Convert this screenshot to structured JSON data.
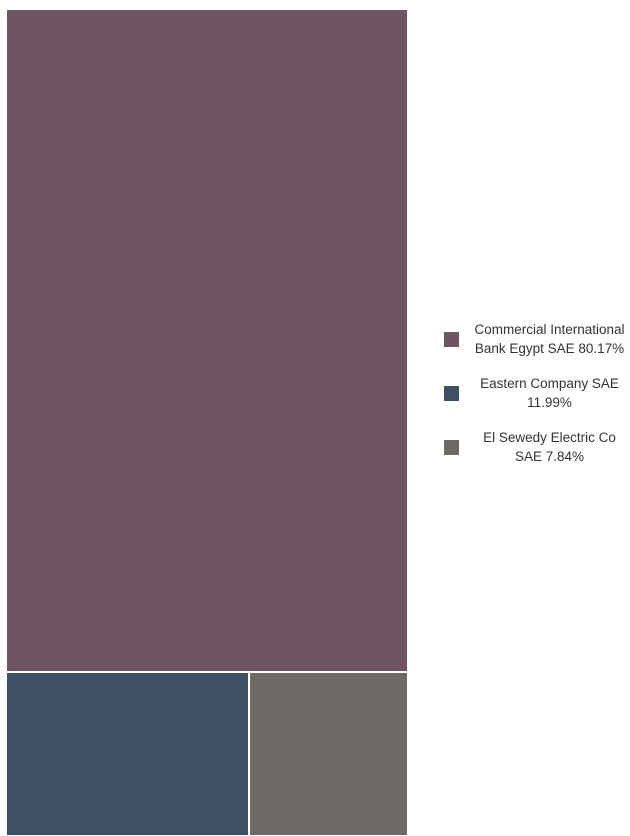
{
  "chart_data": {
    "type": "treemap",
    "title": "",
    "items": [
      {
        "label": "Commercial International Bank Egypt SAE",
        "value": 80.17,
        "display": "Commercial International Bank Egypt SAE 80.17%",
        "color": "#6f5462"
      },
      {
        "label": "Eastern Company SAE",
        "value": 11.99,
        "display": "Eastern Company SAE 11.99%",
        "color": "#3e5063"
      },
      {
        "label": "El Sewedy Electric Co SAE",
        "value": 7.84,
        "display": "El Sewedy Electric Co SAE 7.84%",
        "color": "#6d6a65"
      }
    ],
    "legend": {
      "position": "right"
    }
  }
}
